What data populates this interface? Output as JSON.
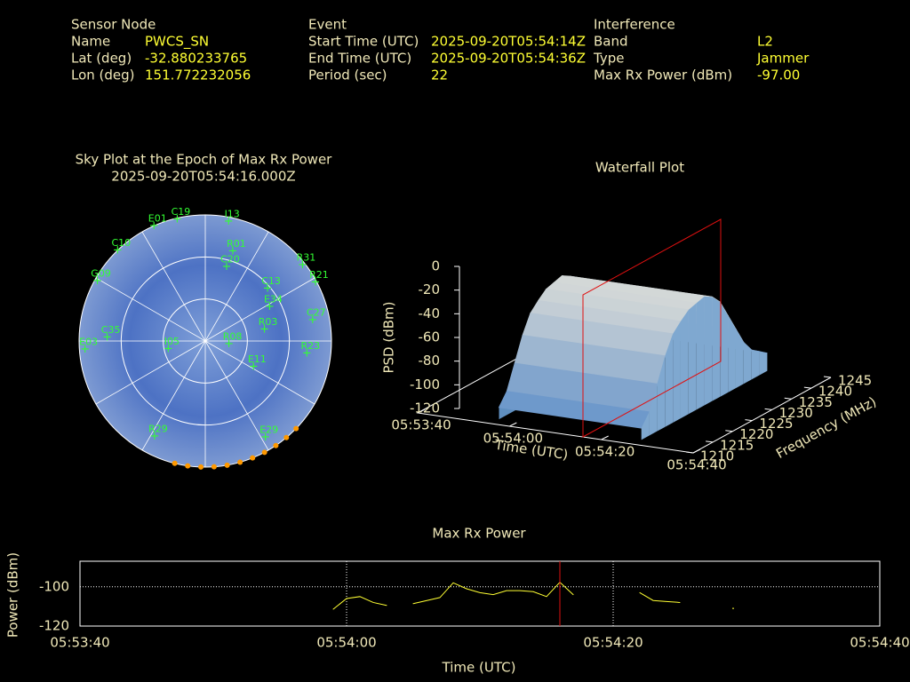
{
  "header": {
    "sections": [
      {
        "title": "Sensor Node",
        "rows": [
          [
            "Name",
            "PWCS_SN"
          ],
          [
            "Lat (deg)",
            "-32.880233765"
          ],
          [
            "Lon (deg)",
            "151.772232056"
          ]
        ]
      },
      {
        "title": "Event",
        "rows": [
          [
            "Start Time (UTC)",
            "2025-09-20T05:54:14Z"
          ],
          [
            "End Time (UTC)",
            "2025-09-20T05:54:36Z"
          ],
          [
            "Period (sec)",
            "22"
          ]
        ]
      },
      {
        "title": "Interference",
        "rows": [
          [
            "Band",
            "L2"
          ],
          [
            "Type",
            "Jammer"
          ],
          [
            "Max Rx Power (dBm)",
            "-97.00"
          ]
        ]
      }
    ]
  },
  "chart_data": [
    {
      "type": "skyplot",
      "title": "Sky Plot at the Epoch of Max Rx Power",
      "subtitle": "2025-09-20T05:54:16.000Z",
      "el_rings": [
        0,
        30,
        60
      ],
      "az_spokes": [
        0,
        30,
        60,
        90,
        120,
        150,
        180,
        210,
        240,
        270,
        300,
        330
      ],
      "color": "#33ff33",
      "points": [
        {
          "name": "C19",
          "az": 347,
          "el": 1
        },
        {
          "name": "I13",
          "az": 11,
          "el": 3
        },
        {
          "name": "R31",
          "az": 52,
          "el": 2
        },
        {
          "name": "R21",
          "az": 62,
          "el": 1
        },
        {
          "name": "C27",
          "az": 79,
          "el": 12
        },
        {
          "name": "E34",
          "az": 62,
          "el": 38
        },
        {
          "name": "C13",
          "az": 50,
          "el": 32
        },
        {
          "name": "R01",
          "az": 17,
          "el": 23
        },
        {
          "name": "C20",
          "az": 16,
          "el": 35
        },
        {
          "name": "R03",
          "az": 79,
          "el": 47
        },
        {
          "name": "R23",
          "az": 97,
          "el": 17
        },
        {
          "name": "E11",
          "az": 118,
          "el": 51
        },
        {
          "name": "E29",
          "az": 148,
          "el": 9
        },
        {
          "name": "R29",
          "az": 208,
          "el": 13
        },
        {
          "name": "E03",
          "az": 266,
          "el": 4
        },
        {
          "name": "C35",
          "az": 272,
          "el": 20
        },
        {
          "name": "G09",
          "az": 299,
          "el": 2
        },
        {
          "name": "C10",
          "az": 316,
          "el": 0
        },
        {
          "name": "E01",
          "az": 336,
          "el": 0
        },
        {
          "name": "I05",
          "az": 258,
          "el": 63
        },
        {
          "name": "R08",
          "az": 98,
          "el": 73
        }
      ],
      "track": {
        "color": "#ff9900",
        "az": [
          134,
          140,
          146,
          152,
          158,
          164,
          170,
          176,
          182,
          188,
          194
        ],
        "el": [
          0,
          0,
          0,
          0,
          0,
          0,
          0,
          0,
          0,
          0,
          0
        ]
      }
    },
    {
      "type": "waterfall",
      "title": "Waterfall Plot",
      "xlabel": "Time (UTC)",
      "ylabel": "Frequency (MHz)",
      "zlabel": "PSD (dBm)",
      "xlim": [
        "05:53:40",
        "05:54:40"
      ],
      "xticks": [
        "05:53:40",
        "05:54:00",
        "05:54:20",
        "05:54:40"
      ],
      "ylim": [
        1210,
        1245
      ],
      "yticks": [
        1210,
        1215,
        1220,
        1225,
        1230,
        1235,
        1240,
        1245
      ],
      "zlim": [
        -120,
        0
      ],
      "zticks": [
        -120,
        -100,
        -80,
        -60,
        -40,
        -20,
        0
      ],
      "time_range": [
        "05:53:56",
        "05:54:27"
      ],
      "marker_x": "05:54:16",
      "x": [
        1212,
        1214,
        1216,
        1218,
        1220,
        1222,
        1224,
        1226,
        1228,
        1230,
        1232,
        1234,
        1236,
        1238,
        1240,
        1242,
        1244
      ],
      "values": [
        -110,
        -100,
        -80,
        -60,
        -45,
        -38,
        -32,
        -30,
        -28,
        -32,
        -40,
        -55,
        -70,
        -85,
        -95,
        -100,
        -105
      ]
    },
    {
      "type": "line",
      "title": "Max Rx Power",
      "xlabel": "Time (UTC)",
      "ylabel": "Power (dBm)",
      "color": "#ffff33",
      "xlim": [
        "05:53:40",
        "05:54:40"
      ],
      "xticks": [
        "05:53:40",
        "05:54:00",
        "05:54:20",
        "05:54:40"
      ],
      "ylim": [
        -120,
        -87
      ],
      "yticks": [
        -120,
        -100
      ],
      "grid": true,
      "marker_x": "05:54:16",
      "x": [
        "05:53:59",
        "05:54:00",
        "05:54:01",
        "05:54:02",
        "05:54:03",
        "05:54:04",
        "05:54:05",
        "05:54:07",
        "05:54:08",
        "05:54:09",
        "05:54:10",
        "05:54:11",
        "05:54:12",
        "05:54:13",
        "05:54:14",
        "05:54:15",
        "05:54:16",
        "05:54:17",
        "05:54:18",
        "05:54:22",
        "05:54:23",
        "05:54:24",
        "05:54:25",
        "05:54:26",
        "05:54:29"
      ],
      "values": [
        -111.4,
        -106,
        -105,
        -108,
        -109.5,
        null,
        -108.6,
        -105.5,
        -98,
        -101,
        -103,
        -104,
        -102,
        -102,
        -102.5,
        -105,
        -97.7,
        -104,
        null,
        -103,
        -107,
        -107.5,
        -108,
        null,
        -111
      ]
    }
  ]
}
